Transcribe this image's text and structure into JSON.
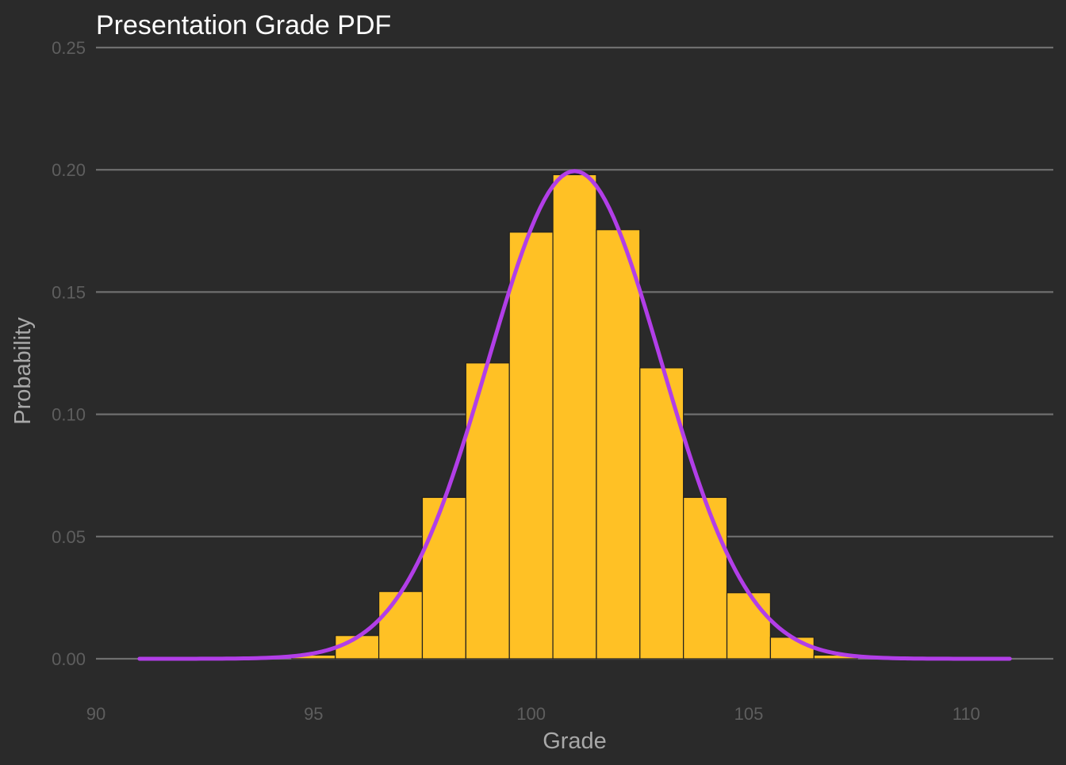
{
  "chart_data": {
    "type": "bar",
    "title": "Presentation Grade PDF",
    "xlabel": "Grade",
    "ylabel": "Probability",
    "xlim": [
      90,
      112
    ],
    "ylim": [
      -0.012,
      0.25
    ],
    "x_ticks": [
      90,
      95,
      100,
      105,
      110
    ],
    "x_tick_labels": [
      "90",
      "95",
      "100",
      "105",
      "110"
    ],
    "y_ticks": [
      0.0,
      0.05,
      0.1,
      0.15,
      0.2,
      0.25
    ],
    "y_tick_labels": [
      "0.00",
      "0.05",
      "0.10",
      "0.15",
      "0.20",
      "0.25"
    ],
    "grid": "horizontal",
    "legend": "none",
    "bins": [
      {
        "x": 95,
        "value": 0.0015
      },
      {
        "x": 96,
        "value": 0.0095
      },
      {
        "x": 97,
        "value": 0.0275
      },
      {
        "x": 98,
        "value": 0.066
      },
      {
        "x": 99,
        "value": 0.121
      },
      {
        "x": 100,
        "value": 0.1745
      },
      {
        "x": 101,
        "value": 0.198
      },
      {
        "x": 102,
        "value": 0.1755
      },
      {
        "x": 103,
        "value": 0.119
      },
      {
        "x": 104,
        "value": 0.066
      },
      {
        "x": 105,
        "value": 0.027
      },
      {
        "x": 106,
        "value": 0.0088
      },
      {
        "x": 107,
        "value": 0.0015
      }
    ],
    "bin_width": 1,
    "density_curve": {
      "x_range": [
        91,
        111
      ],
      "mean": 101,
      "sd": 2,
      "samples": 200
    },
    "colors": {
      "background": "#2a2a2a",
      "bar_fill": "#ffc125",
      "bar_edge": "#1f1f1f",
      "curve": "#b23ee8",
      "grid": "#6f6f6f",
      "tick_label": "#5e5e5e",
      "axis_title": "#a8a8a8",
      "title": "#ffffff"
    }
  }
}
